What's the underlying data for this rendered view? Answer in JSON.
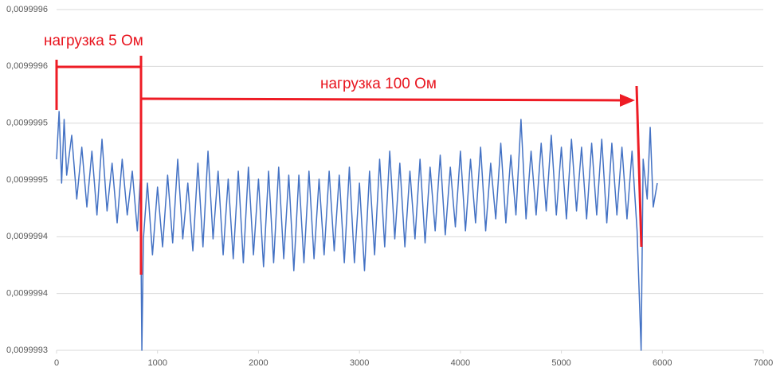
{
  "chart_data": {
    "type": "line",
    "annotations": [
      "нагрузка 5 Ом",
      "нагрузка 100 Ом"
    ],
    "x": [
      0,
      25,
      50,
      75,
      100,
      150,
      200,
      250,
      300,
      350,
      400,
      450,
      500,
      550,
      600,
      650,
      700,
      750,
      800,
      830,
      845,
      860,
      900,
      950,
      1000,
      1050,
      1100,
      1150,
      1200,
      1250,
      1300,
      1350,
      1400,
      1450,
      1500,
      1550,
      1600,
      1650,
      1700,
      1750,
      1800,
      1850,
      1900,
      1950,
      2000,
      2050,
      2100,
      2150,
      2200,
      2250,
      2300,
      2350,
      2400,
      2450,
      2500,
      2550,
      2600,
      2650,
      2700,
      2750,
      2800,
      2850,
      2900,
      2950,
      3000,
      3050,
      3100,
      3150,
      3200,
      3250,
      3300,
      3350,
      3400,
      3450,
      3500,
      3550,
      3600,
      3650,
      3700,
      3750,
      3800,
      3850,
      3900,
      3950,
      4000,
      4050,
      4100,
      4150,
      4200,
      4250,
      4300,
      4350,
      4400,
      4450,
      4500,
      4550,
      4600,
      4650,
      4700,
      4750,
      4800,
      4850,
      4900,
      4950,
      5000,
      5050,
      5100,
      5150,
      5200,
      5250,
      5300,
      5350,
      5400,
      5450,
      5500,
      5550,
      5600,
      5650,
      5700,
      5750,
      5790,
      5810,
      5850,
      5880,
      5910,
      5950
    ],
    "series": [
      {
        "color": "#4472c4",
        "values": [
          0.0099994682,
          0.0099995103,
          0.0099994472,
          0.0099995033,
          0.0099994542,
          0.0099994893,
          0.0099994332,
          0.0099994788,
          0.0099994262,
          0.0099994753,
          0.0099994192,
          0.0099994858,
          0.0099994227,
          0.0099994647,
          0.0099994122,
          0.0099994682,
          0.0099994192,
          0.0099994577,
          0.0099994052,
          0.0099994507,
          0.0099993,
          0.0099993981,
          0.0099994472,
          0.0099993841,
          0.0099994437,
          0.0099993911,
          0.0099994542,
          0.0099993946,
          0.0099994682,
          0.0099993981,
          0.0099994472,
          0.0099993876,
          0.0099994647,
          0.0099993911,
          0.0099994753,
          0.0099993981,
          0.0099994577,
          0.0099993841,
          0.0099994507,
          0.0099993806,
          0.0099994577,
          0.0099993771,
          0.0099994612,
          0.0099993841,
          0.0099994507,
          0.0099993736,
          0.0099994577,
          0.0099993771,
          0.0099994612,
          0.0099993806,
          0.0099994542,
          0.0099993701,
          0.0099994542,
          0.0099993771,
          0.0099994577,
          0.0099993806,
          0.0099994507,
          0.0099993841,
          0.0099994577,
          0.0099993876,
          0.0099994542,
          0.0099993771,
          0.0099994612,
          0.0099993771,
          0.0099994472,
          0.0099993701,
          0.0099994577,
          0.0099993841,
          0.0099994682,
          0.0099993911,
          0.0099994753,
          0.0099993981,
          0.0099994647,
          0.0099993911,
          0.0099994577,
          0.0099993981,
          0.0099994682,
          0.0099993946,
          0.0099994612,
          0.0099994052,
          0.0099994718,
          0.0099994017,
          0.0099994612,
          0.0099994087,
          0.0099994753,
          0.0099994052,
          0.0099994682,
          0.0099994122,
          0.0099994788,
          0.0099994052,
          0.0099994647,
          0.0099994157,
          0.0099994823,
          0.0099994122,
          0.0099994718,
          0.0099994192,
          0.0099995033,
          0.0099994157,
          0.0099994753,
          0.0099994192,
          0.0099994823,
          0.0099994227,
          0.0099994893,
          0.0099994192,
          0.0099994788,
          0.0099994157,
          0.0099994858,
          0.0099994227,
          0.0099994788,
          0.0099994157,
          0.0099994823,
          0.0099994192,
          0.0099994858,
          0.0099994122,
          0.0099994823,
          0.0099994192,
          0.0099994788,
          0.0099994157,
          0.0099994753,
          0.0099994052,
          0.0099993,
          0.0099994682,
          0.0099994332,
          0.0099994963,
          0.0099994262,
          0.0099994472
        ]
      }
    ],
    "xlim": [
      0,
      7000
    ],
    "xticks": [
      0,
      1000,
      2000,
      3000,
      4000,
      5000,
      6000,
      7000
    ],
    "ylim": [
      0.0099993,
      0.0099996
    ],
    "yticks": [
      {
        "value": 0.0099993,
        "label": "0,0099993"
      },
      {
        "value": 0.00999935,
        "label": "0,0099994"
      },
      {
        "value": 0.0099994,
        "label": "0,0099994"
      },
      {
        "value": 0.00999945,
        "label": "0,0099995"
      },
      {
        "value": 0.0099995,
        "label": "0,0099995"
      },
      {
        "value": 0.00999955,
        "label": "0,0099996"
      },
      {
        "value": 0.0099996,
        "label": "0,0099996"
      }
    ],
    "grid": true
  }
}
